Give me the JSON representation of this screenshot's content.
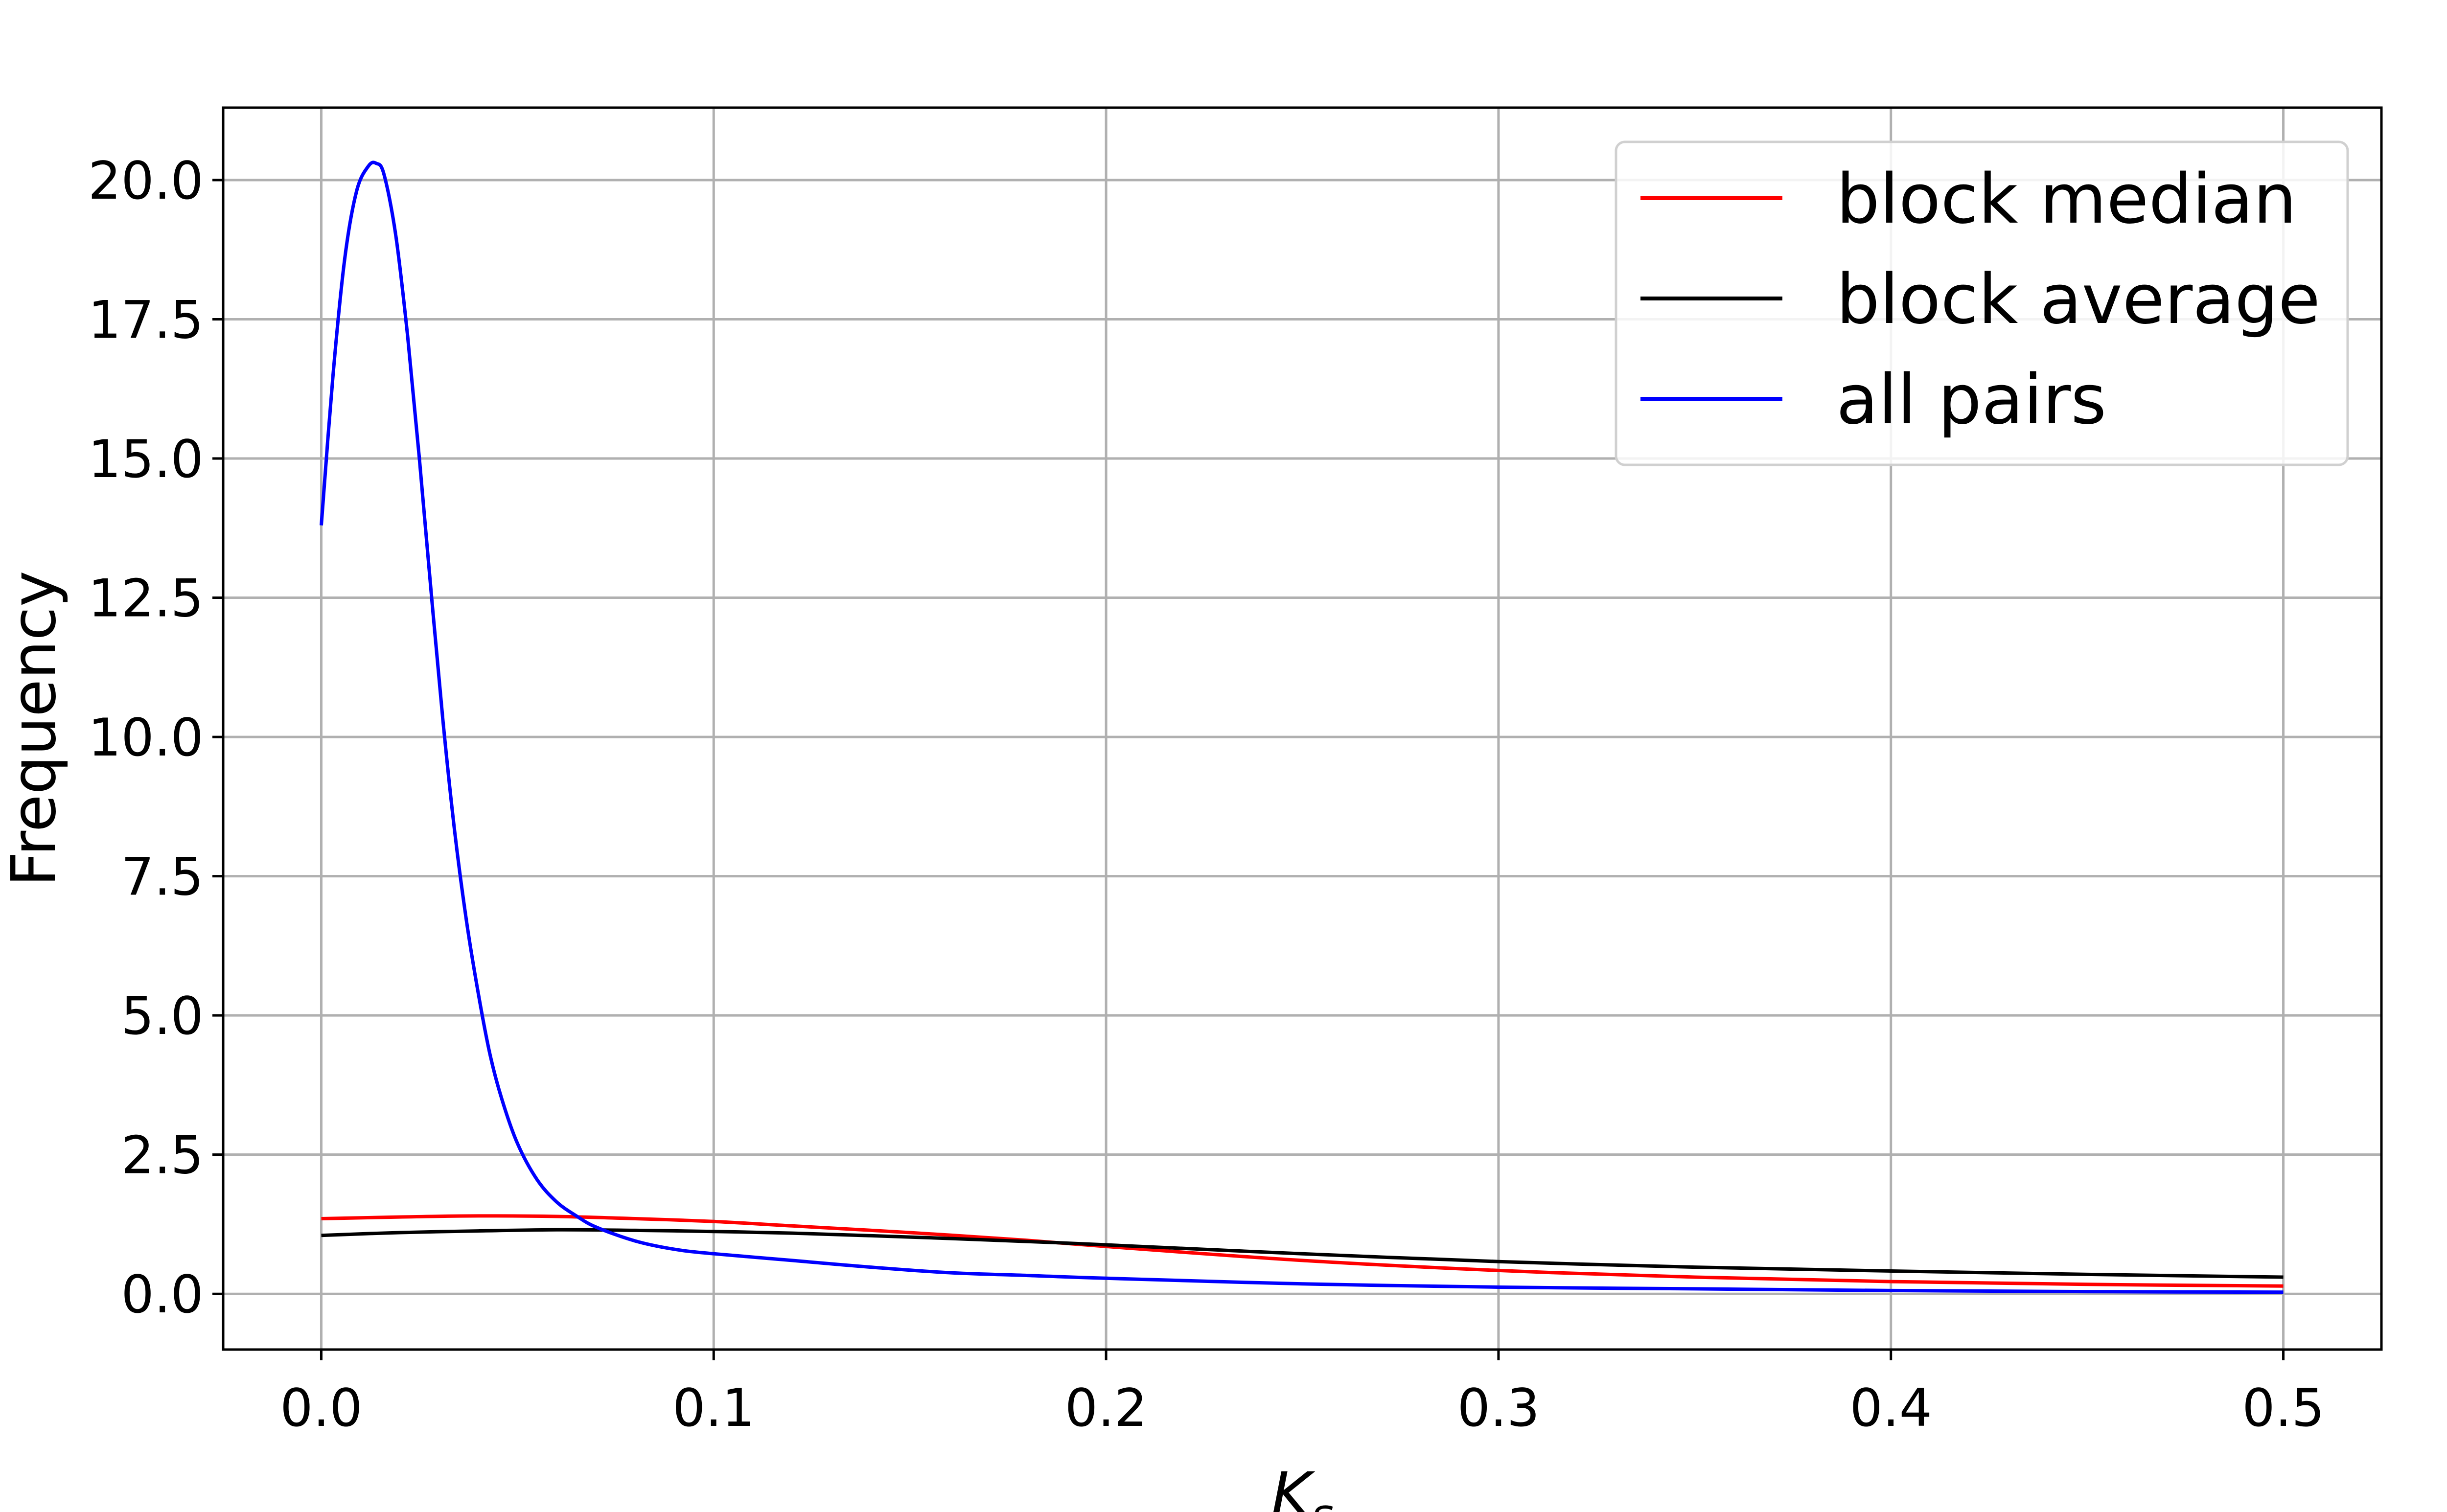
{
  "chart_data": {
    "type": "line",
    "title": "",
    "xlabel": "K_s",
    "ylabel": "Frequency",
    "xlim": [
      -0.025,
      0.525
    ],
    "ylim": [
      -1.0,
      21.3
    ],
    "xticks": [
      0.0,
      0.1,
      0.2,
      0.3,
      0.4,
      0.5
    ],
    "xtick_labels": [
      "0.0",
      "0.1",
      "0.2",
      "0.3",
      "0.4",
      "0.5"
    ],
    "yticks": [
      0.0,
      2.5,
      5.0,
      7.5,
      10.0,
      12.5,
      15.0,
      17.5,
      20.0
    ],
    "ytick_labels": [
      "0.0",
      "2.5",
      "5.0",
      "7.5",
      "10.0",
      "12.5",
      "15.0",
      "17.5",
      "20.0"
    ],
    "grid": true,
    "legend_position": "top-right",
    "series": [
      {
        "name": "block median",
        "color": "#ff0000",
        "x": [
          0.0,
          0.02,
          0.04,
          0.06,
          0.08,
          0.1,
          0.12,
          0.15,
          0.18,
          0.2,
          0.25,
          0.3,
          0.35,
          0.4,
          0.45,
          0.5
        ],
        "y": [
          1.35,
          1.38,
          1.4,
          1.39,
          1.35,
          1.3,
          1.22,
          1.1,
          0.96,
          0.85,
          0.6,
          0.42,
          0.3,
          0.22,
          0.17,
          0.14
        ]
      },
      {
        "name": "block average",
        "color": "#000000",
        "x": [
          0.0,
          0.02,
          0.04,
          0.06,
          0.08,
          0.1,
          0.12,
          0.15,
          0.18,
          0.2,
          0.25,
          0.3,
          0.35,
          0.4,
          0.45,
          0.5
        ],
        "y": [
          1.05,
          1.1,
          1.13,
          1.15,
          1.14,
          1.12,
          1.09,
          1.02,
          0.94,
          0.88,
          0.72,
          0.58,
          0.48,
          0.41,
          0.35,
          0.3
        ]
      },
      {
        "name": "all pairs",
        "color": "#0000ff",
        "x": [
          0.0,
          0.003,
          0.006,
          0.009,
          0.012,
          0.014,
          0.016,
          0.019,
          0.022,
          0.025,
          0.028,
          0.031,
          0.034,
          0.037,
          0.04,
          0.043,
          0.046,
          0.05,
          0.055,
          0.06,
          0.065,
          0.07,
          0.08,
          0.09,
          0.1,
          0.12,
          0.14,
          0.16,
          0.18,
          0.2,
          0.25,
          0.3,
          0.35,
          0.4,
          0.45,
          0.5
        ],
        "y": [
          13.8,
          16.5,
          18.6,
          19.8,
          20.25,
          20.3,
          20.1,
          19.0,
          17.2,
          15.0,
          12.6,
          10.3,
          8.3,
          6.7,
          5.4,
          4.3,
          3.5,
          2.7,
          2.05,
          1.65,
          1.4,
          1.2,
          0.95,
          0.8,
          0.72,
          0.6,
          0.48,
          0.38,
          0.33,
          0.28,
          0.18,
          0.12,
          0.09,
          0.06,
          0.04,
          0.03
        ]
      }
    ]
  }
}
